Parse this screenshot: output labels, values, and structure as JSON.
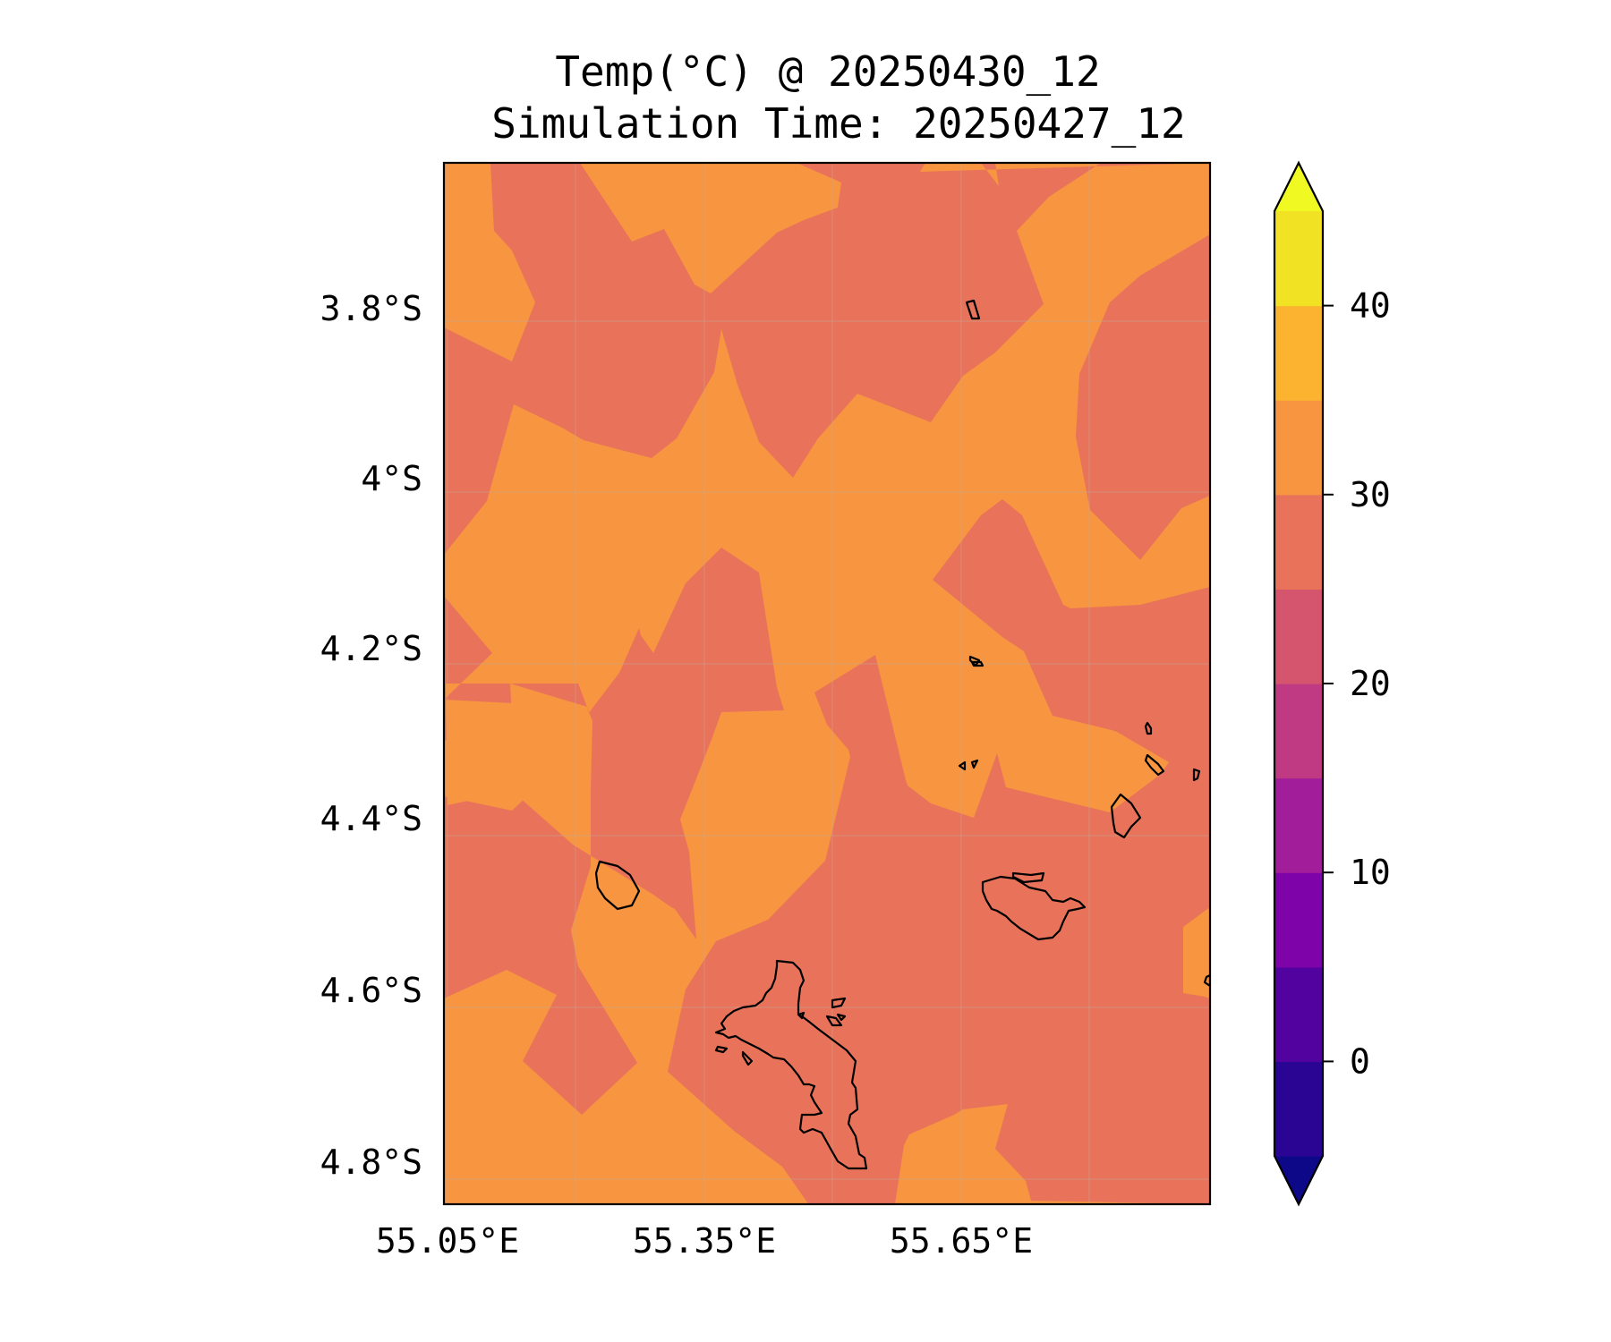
{
  "title": {
    "line1": "Temp(°C) @ 20250430_12",
    "line2": "Simulation Time: 20250427_12"
  },
  "map": {
    "lat_ticks": [
      "3.8°S",
      "4°S",
      "4.2°S",
      "4.4°S",
      "4.6°S",
      "4.8°S"
    ],
    "lon_ticks": [
      "55.05°E",
      "55.35°E",
      "55.65°E"
    ],
    "background_band": "25–30",
    "foreground_band": "30–35"
  },
  "colorbar": {
    "ticks": [
      "0",
      "10",
      "20",
      "30",
      "40"
    ],
    "extend": "both",
    "bands": [
      {
        "range": "<-5",
        "color": "#0d0887"
      },
      {
        "range": "-5–0",
        "color": "#2a0593"
      },
      {
        "range": "0–5",
        "color": "#52029f"
      },
      {
        "range": "5–10",
        "color": "#7e03a8"
      },
      {
        "range": "10–15",
        "color": "#a21d9a"
      },
      {
        "range": "15–20",
        "color": "#c03a83"
      },
      {
        "range": "20–25",
        "color": "#d5546e"
      },
      {
        "range": "25–30",
        "color": "#e9735a"
      },
      {
        "range": "30–35",
        "color": "#f79540"
      },
      {
        "range": "35–40",
        "color": "#fcb32f"
      },
      {
        "range": "40–45",
        "color": "#f2e224"
      },
      {
        "range": ">45",
        "color": "#f0f921"
      }
    ]
  }
}
